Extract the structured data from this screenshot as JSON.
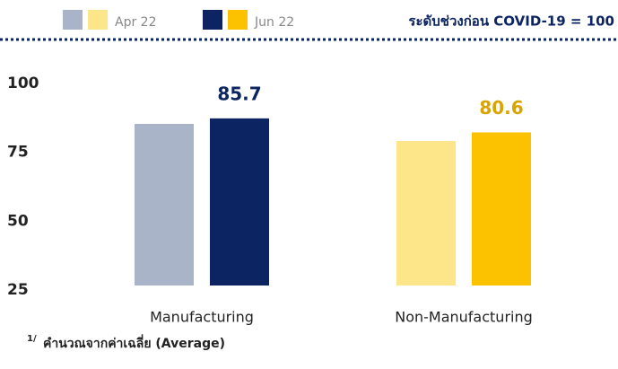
{
  "chart_data": {
    "type": "bar",
    "note": "ระดับช่วงก่อน COVID-19 = 100",
    "footnote_marker": "1/",
    "footnote": "คำนวณจากค่าเฉลี่ย (Average)",
    "categories": [
      "Manufacturing",
      "Non-Manufacturing"
    ],
    "series": [
      {
        "name": "Apr 22",
        "colors": [
          "#a9b4c8",
          "#fde68a"
        ],
        "values": [
          83.7,
          77.5
        ],
        "labels": false
      },
      {
        "name": "Jun 22",
        "colors": [
          "#0c2461",
          "#fcc200"
        ],
        "values": [
          85.7,
          80.6
        ],
        "labels": true,
        "label_colors": [
          "#0c2461",
          "#d9a400"
        ]
      }
    ],
    "ylim": [
      25,
      100
    ],
    "yticks": [
      25,
      50,
      75,
      100
    ],
    "grid": false
  }
}
